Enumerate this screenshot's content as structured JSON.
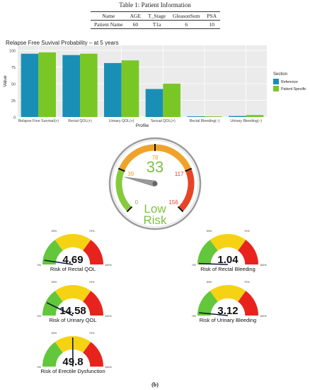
{
  "table": {
    "caption": "Table 1: Patient Information",
    "headers": [
      "Name",
      "AGE",
      "T_Stage",
      "GleasonSum",
      "PSA"
    ],
    "row": [
      "Patient Name",
      "60",
      "T1a",
      "6",
      "10"
    ]
  },
  "chart_data": [
    {
      "type": "bar",
      "title": "Relapse Free Suvival Probability – at 5 years",
      "xlabel": "Profile",
      "ylabel": "Value",
      "ylim": [
        0,
        100
      ],
      "yticks": [
        0,
        25,
        50,
        75,
        100
      ],
      "grid": true,
      "legend_title": "Section",
      "legend_position": "right",
      "categories": [
        "Relapse Free Survival(+)",
        "Rectal QOL(+)",
        "Urinary QOL(+)",
        "Sexual QOL(+)",
        "Rectal Bleeding(–)",
        "Urinary Bleeding(–)"
      ],
      "series": [
        {
          "name": "Reference",
          "color": "#1a8fb5",
          "values": [
            95,
            93,
            81,
            42,
            1,
            1.5
          ]
        },
        {
          "name": "Patient Specific",
          "color": "#79c725",
          "values": [
            97,
            95,
            85,
            50,
            1,
            3
          ]
        }
      ]
    },
    {
      "type": "gauge",
      "value": "33",
      "needle_value": 33,
      "min": 0,
      "max": 156,
      "ticks": [
        "0",
        "39",
        "78",
        "117",
        "156"
      ],
      "tick_values": [
        0,
        39,
        78,
        117,
        156
      ],
      "bands": [
        {
          "from": 0,
          "to": 39,
          "color": "#86c93c"
        },
        {
          "from": 39,
          "to": 117,
          "color": "#f0a32a"
        },
        {
          "from": 117,
          "to": 156,
          "color": "#e64524"
        }
      ],
      "risk_label": [
        "Low",
        "Risk"
      ],
      "risk_color": "#7cc242"
    },
    {
      "type": "semi-gauge",
      "gauges": [
        {
          "label": "Risk of Rectal QOL",
          "value": "4.69",
          "needle": 4.69
        },
        {
          "label": "Risk of Rectal Bleeding",
          "value": "1.04",
          "needle": 1.04
        },
        {
          "label": "Risk of Urinary QOL",
          "value": "14.58",
          "needle": 14.58
        },
        {
          "label": "Risk of Urinary Bleeding",
          "value": "3.12",
          "needle": 3.12
        },
        {
          "label": "Risk of Erectile Dysfunction",
          "value": "49.8",
          "needle": 49.8
        }
      ],
      "scale_labels": [
        "0%",
        "30%",
        "70%",
        "100%"
      ],
      "bands": [
        {
          "from": 0,
          "to": 30,
          "color": "#62c73a"
        },
        {
          "from": 30,
          "to": 70,
          "color": "#f5d313"
        },
        {
          "from": 70,
          "to": 100,
          "color": "#e8231e"
        }
      ]
    }
  ],
  "figure_label": "(b)"
}
